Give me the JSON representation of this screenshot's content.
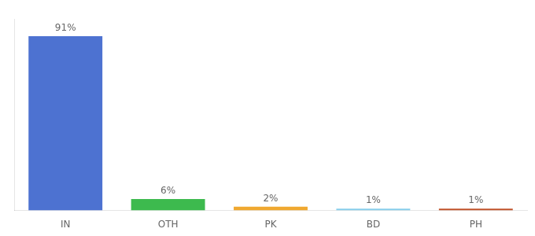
{
  "chart_data": {
    "type": "bar",
    "categories": [
      "IN",
      "OTH",
      "PK",
      "BD",
      "PH"
    ],
    "values": [
      91,
      6,
      2,
      1,
      1
    ],
    "value_labels": [
      "91%",
      "6%",
      "2%",
      "1%",
      "1%"
    ],
    "data_labels": true,
    "colors": [
      "#4d72d1",
      "#3dba4e",
      "#f0a830",
      "#87ceeb",
      "#c0522a"
    ],
    "ylim": [
      0,
      100
    ],
    "tick_labels": "x",
    "grid": false
  }
}
